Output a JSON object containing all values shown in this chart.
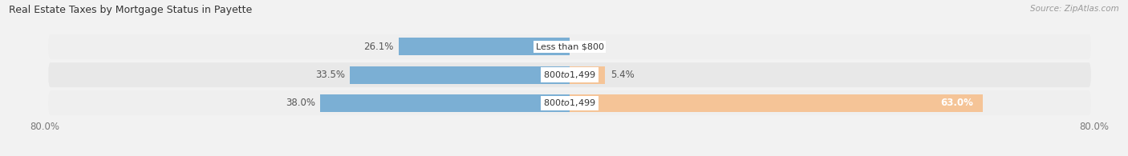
{
  "title": "Real Estate Taxes by Mortgage Status in Payette",
  "source": "Source: ZipAtlas.com",
  "categories": [
    "Less than $800",
    "$800 to $1,499",
    "$800 to $1,499"
  ],
  "without_mortgage": [
    26.1,
    33.5,
    38.0
  ],
  "with_mortgage": [
    0.0,
    5.4,
    63.0
  ],
  "color_without": "#7bafd4",
  "color_with": "#f5c497",
  "xlim_left": -80.0,
  "xlim_right": 80.0,
  "bar_height": 0.62,
  "row_bg_colors": [
    "#efefef",
    "#e8e8e8",
    "#efefef"
  ],
  "background_color": "#f2f2f2",
  "title_fontsize": 9,
  "label_fontsize": 8.5,
  "legend_fontsize": 8.5,
  "source_fontsize": 7.5,
  "value_color": "#555555",
  "category_text_color": "#333333"
}
